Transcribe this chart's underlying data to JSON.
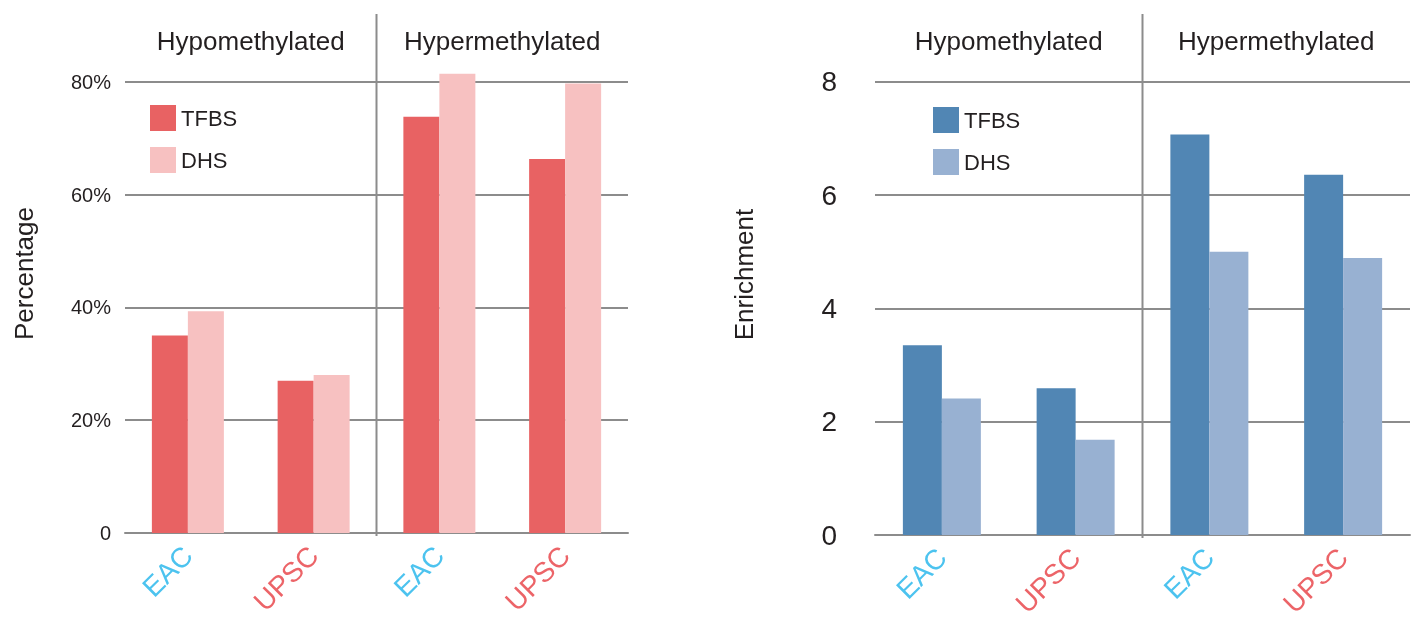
{
  "chart_data": [
    {
      "type": "bar",
      "ylabel": "Percentage",
      "categories": [
        "EAC",
        "UPSC",
        "EAC",
        "UPSC"
      ],
      "series": [
        {
          "name": "TFBS",
          "color": "#e86263",
          "values": [
            35.0,
            27.0,
            73.8,
            66.3
          ]
        },
        {
          "name": "DHS",
          "color": "#f7c1c1",
          "values": [
            39.3,
            28.0,
            81.4,
            79.7
          ]
        }
      ],
      "ylim": [
        0,
        92
      ],
      "yticks": [
        0,
        {
          "value": 20,
          "label": "20%"
        },
        {
          "value": 40,
          "label": "40%"
        },
        {
          "value": 60,
          "label": "60%"
        },
        {
          "value": 80,
          "label": "80%"
        }
      ],
      "grid": "y",
      "legend": "top left",
      "annotations": [
        "Hypomethylated",
        "Hypermethylated"
      ]
    },
    {
      "type": "bar",
      "ylabel": "Enrichment",
      "categories": [
        "EAC",
        "UPSC",
        "EAC",
        "UPSC"
      ],
      "series": [
        {
          "name": "TFBS",
          "color": "#5186b4",
          "values": [
            3.35,
            2.59,
            7.07,
            6.36
          ]
        },
        {
          "name": "DHS",
          "color": "#98b1d2",
          "values": [
            2.41,
            1.68,
            5.0,
            4.89
          ]
        }
      ],
      "ylim": [
        0,
        9.2
      ],
      "yticks": [
        0,
        2,
        4,
        6,
        8
      ],
      "grid": "y",
      "legend": "top left",
      "annotations": [
        "Hypomethylated",
        "Hypermethylated"
      ]
    }
  ]
}
